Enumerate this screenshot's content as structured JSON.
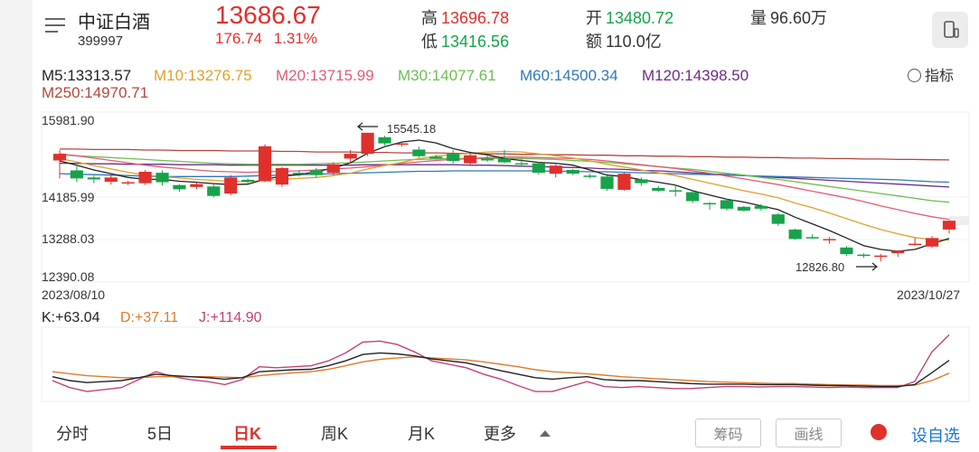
{
  "header": {
    "stock_name": "中证白酒",
    "stock_code": "399997",
    "price": "13686.67",
    "change_abs": "176.74",
    "change_pct": "1.31%",
    "high_label": "高",
    "high_value": "13696.78",
    "low_label": "低",
    "low_value": "13416.56",
    "open_label": "开",
    "open_value": "13480.72",
    "amount_label": "额",
    "amount_value": "110.0亿",
    "volume_label": "量",
    "volume_value": "96.60万"
  },
  "indicators": {
    "ma5": "M5:13313.57",
    "ma10": "M10:13276.75",
    "ma20": "M20:13715.99",
    "ma30": "M30:14077.61",
    "ma60": "M60:14500.34",
    "ma120": "M120:14398.50",
    "ma250": "M250:14970.71",
    "indicator_button": "指标"
  },
  "colors": {
    "up": "#e0302b",
    "down": "#16a34a",
    "ma5": "#222222",
    "ma10": "#e0a12a",
    "ma20": "#e35b76",
    "ma30": "#6bbf4f",
    "ma60": "#2f78b5",
    "ma120": "#6d2c86",
    "ma250": "#b5473a",
    "k": "#222222",
    "d": "#e07b2a",
    "j": "#c2407a"
  },
  "chart_data": {
    "type": "candlestick",
    "y_ticks": [
      "15981.90",
      "14185.99",
      "13288.03",
      "12390.08"
    ],
    "ylim": [
      12390.08,
      15981.9
    ],
    "x_start_label": "2023/08/10",
    "x_end_label": "2023/10/27",
    "max_annotation": "15545.18",
    "max_value": 15545.18,
    "min_annotation": "12826.80",
    "min_value": 12826.8,
    "candles": [
      [
        14960,
        15100,
        15180,
        14580
      ],
      [
        14750,
        14580,
        14880,
        14500
      ],
      [
        14600,
        14560,
        14640,
        14480
      ],
      [
        14510,
        14600,
        14680,
        14450
      ],
      [
        14480,
        14500,
        14530,
        14440
      ],
      [
        14480,
        14720,
        14760,
        14440
      ],
      [
        14700,
        14500,
        14750,
        14430
      ],
      [
        14440,
        14350,
        14460,
        14300
      ],
      [
        14400,
        14460,
        14500,
        14350
      ],
      [
        14410,
        14210,
        14450,
        14180
      ],
      [
        14260,
        14600,
        14650,
        14220
      ],
      [
        14550,
        14510,
        14580,
        14480
      ],
      [
        14520,
        15260,
        15300,
        14500
      ],
      [
        14450,
        14800,
        14820,
        14400
      ],
      [
        14700,
        14680,
        14760,
        14620
      ],
      [
        14750,
        14650,
        14800,
        14600
      ],
      [
        14700,
        14880,
        14920,
        14650
      ],
      [
        15000,
        15100,
        15180,
        14900
      ],
      [
        15100,
        15545.18,
        15545.18,
        15050
      ],
      [
        15450,
        15320,
        15480,
        15280
      ],
      [
        15300,
        15320,
        15350,
        15250
      ],
      [
        15190,
        15050,
        15250,
        15020
      ],
      [
        15040,
        15000,
        15080,
        14980
      ],
      [
        15100,
        14950,
        15180,
        14900
      ],
      [
        14900,
        15070,
        15120,
        14860
      ],
      [
        15000,
        14960,
        15060,
        14930
      ],
      [
        15000,
        14920,
        15180,
        14900
      ],
      [
        14900,
        14880,
        15000,
        14860
      ],
      [
        14900,
        14700,
        14920,
        14660
      ],
      [
        14680,
        14850,
        14880,
        14600
      ],
      [
        14760,
        14680,
        14780,
        14650
      ],
      [
        14640,
        14620,
        14680,
        14580
      ],
      [
        14620,
        14360,
        14650,
        14320
      ],
      [
        14340,
        14680,
        14700,
        14320
      ],
      [
        14560,
        14480,
        14600,
        14420
      ],
      [
        14380,
        14320,
        14420,
        14300
      ],
      [
        14330,
        14310,
        14450,
        14200
      ],
      [
        14290,
        14100,
        14320,
        14060
      ],
      [
        14060,
        14050,
        14080,
        13920
      ],
      [
        14120,
        13940,
        14150,
        13900
      ],
      [
        13980,
        13900,
        14000,
        13880
      ],
      [
        14000,
        13940,
        14040,
        13900
      ],
      [
        13820,
        13620,
        13850,
        13580
      ],
      [
        13500,
        13300,
        13520,
        13280
      ],
      [
        13340,
        13330,
        13400,
        13300
      ],
      [
        13300,
        13300,
        13340,
        13200
      ],
      [
        13120,
        12980,
        13150,
        12940
      ],
      [
        12970,
        12960,
        13000,
        12900
      ],
      [
        12940,
        12950,
        12980,
        12826.8
      ],
      [
        13000,
        13050,
        13070,
        12920
      ],
      [
        13180,
        13200,
        13320,
        13160
      ],
      [
        13140,
        13320,
        13360,
        13120
      ],
      [
        13500,
        13686.67,
        13696.78,
        13416.56
      ]
    ],
    "ma5": [
      14950,
      14860,
      14760,
      14680,
      14600,
      14560,
      14560,
      14520,
      14500,
      14470,
      14450,
      14460,
      14560,
      14630,
      14660,
      14720,
      14800,
      14910,
      15110,
      15250,
      15350,
      15390,
      15330,
      15210,
      15130,
      15080,
      15000,
      14960,
      14920,
      14900,
      14860,
      14760,
      14650,
      14620,
      14550,
      14500,
      14440,
      14320,
      14230,
      14140,
      14080,
      14000,
      13920,
      13760,
      13620,
      13480,
      13320,
      13160,
      13080,
      13040,
      13080,
      13200,
      13313.57
    ],
    "ma10": [
      15000,
      14930,
      14850,
      14780,
      14710,
      14650,
      14620,
      14590,
      14560,
      14540,
      14520,
      14510,
      14540,
      14560,
      14580,
      14600,
      14640,
      14690,
      14780,
      14850,
      14920,
      15000,
      15050,
      15090,
      15110,
      15140,
      15150,
      15140,
      15100,
      15060,
      15010,
      14950,
      14880,
      14820,
      14760,
      14700,
      14640,
      14560,
      14480,
      14400,
      14320,
      14250,
      14170,
      14060,
      13960,
      13850,
      13730,
      13610,
      13500,
      13410,
      13330,
      13290,
      13276.75
    ],
    "ma20": [
      15100,
      15060,
      15010,
      14960,
      14910,
      14860,
      14820,
      14790,
      14760,
      14730,
      14720,
      14710,
      14720,
      14730,
      14740,
      14760,
      14780,
      14800,
      14830,
      14860,
      14900,
      14930,
      14960,
      14980,
      15000,
      15020,
      15030,
      15030,
      15020,
      15010,
      15000,
      14980,
      14950,
      14910,
      14870,
      14830,
      14790,
      14740,
      14690,
      14630,
      14570,
      14510,
      14450,
      14380,
      14310,
      14240,
      14170,
      14090,
      14000,
      13920,
      13840,
      13770,
      13715.99
    ],
    "ma30": [
      15080,
      15060,
      15040,
      15020,
      15000,
      14980,
      14960,
      14940,
      14920,
      14900,
      14890,
      14880,
      14880,
      14880,
      14880,
      14890,
      14900,
      14910,
      14930,
      14950,
      14970,
      14980,
      14990,
      15000,
      15000,
      15000,
      15000,
      15000,
      14990,
      14980,
      14960,
      14940,
      14920,
      14890,
      14860,
      14830,
      14800,
      14770,
      14730,
      14690,
      14650,
      14600,
      14560,
      14510,
      14460,
      14410,
      14360,
      14310,
      14260,
      14210,
      14160,
      14110,
      14077.61
    ],
    "ma60": [
      14680,
      14670,
      14660,
      14650,
      14640,
      14630,
      14620,
      14620,
      14620,
      14620,
      14620,
      14630,
      14640,
      14650,
      14660,
      14670,
      14680,
      14690,
      14700,
      14710,
      14720,
      14730,
      14730,
      14740,
      14740,
      14740,
      14740,
      14740,
      14740,
      14730,
      14730,
      14720,
      14720,
      14710,
      14700,
      14690,
      14680,
      14670,
      14660,
      14650,
      14640,
      14630,
      14620,
      14610,
      14600,
      14590,
      14580,
      14570,
      14560,
      14550,
      14530,
      14510,
      14500.34
    ],
    "ma120": [
      14900,
      14900,
      14890,
      14890,
      14880,
      14880,
      14880,
      14870,
      14870,
      14870,
      14860,
      14860,
      14860,
      14860,
      14860,
      14860,
      14860,
      14860,
      14870,
      14870,
      14870,
      14870,
      14870,
      14870,
      14860,
      14860,
      14850,
      14840,
      14830,
      14820,
      14810,
      14800,
      14780,
      14770,
      14750,
      14740,
      14720,
      14700,
      14680,
      14660,
      14640,
      14620,
      14600,
      14580,
      14560,
      14540,
      14520,
      14500,
      14480,
      14460,
      14440,
      14420,
      14398.5
    ],
    "ma250": [
      15200,
      15200,
      15190,
      15190,
      15190,
      15180,
      15180,
      15170,
      15170,
      15170,
      15160,
      15160,
      15160,
      15150,
      15150,
      15140,
      15140,
      15140,
      15130,
      15130,
      15120,
      15120,
      15120,
      15110,
      15110,
      15100,
      15100,
      15090,
      15090,
      15080,
      15080,
      15070,
      15070,
      15060,
      15060,
      15050,
      15050,
      15040,
      15040,
      15030,
      15030,
      15020,
      15020,
      15010,
      15010,
      15000,
      15000,
      14990,
      14990,
      14980,
      14980,
      14975,
      14970.71
    ],
    "kdj": {
      "k_label": "K:+63.04",
      "d_label": "D:+37.11",
      "j_label": "J:+114.90",
      "ylim": [
        -20,
        130
      ],
      "k": [
        30,
        22,
        18,
        20,
        22,
        28,
        35,
        32,
        30,
        28,
        25,
        28,
        40,
        42,
        44,
        45,
        52,
        62,
        75,
        78,
        76,
        72,
        66,
        62,
        58,
        50,
        42,
        35,
        28,
        25,
        28,
        30,
        24,
        22,
        22,
        20,
        18,
        16,
        15,
        15,
        15,
        14,
        14,
        14,
        13,
        12,
        12,
        11,
        10,
        10,
        14,
        38,
        63.04
      ],
      "d": [
        40,
        36,
        32,
        30,
        28,
        28,
        30,
        30,
        30,
        30,
        29,
        28,
        32,
        35,
        38,
        40,
        45,
        52,
        60,
        65,
        68,
        70,
        68,
        66,
        64,
        60,
        55,
        50,
        44,
        40,
        38,
        36,
        33,
        30,
        28,
        26,
        24,
        22,
        20,
        19,
        18,
        17,
        16,
        16,
        15,
        14,
        13,
        13,
        12,
        12,
        13,
        22,
        37.11
      ],
      "j": [
        22,
        8,
        0,
        4,
        8,
        24,
        40,
        30,
        24,
        20,
        14,
        24,
        50,
        48,
        50,
        52,
        62,
        78,
        100,
        102,
        95,
        80,
        62,
        55,
        48,
        35,
        25,
        12,
        0,
        0,
        10,
        20,
        10,
        8,
        10,
        8,
        6,
        6,
        8,
        10,
        10,
        9,
        10,
        10,
        9,
        8,
        9,
        8,
        8,
        8,
        20,
        80,
        114.9
      ]
    }
  },
  "tabs": [
    "分时",
    "5日",
    "日K",
    "周K",
    "月K",
    "更多"
  ],
  "active_tab": "日K",
  "buttons": {
    "chips": "筹码",
    "draw_line": "画线",
    "set_favorite": "设自选"
  }
}
